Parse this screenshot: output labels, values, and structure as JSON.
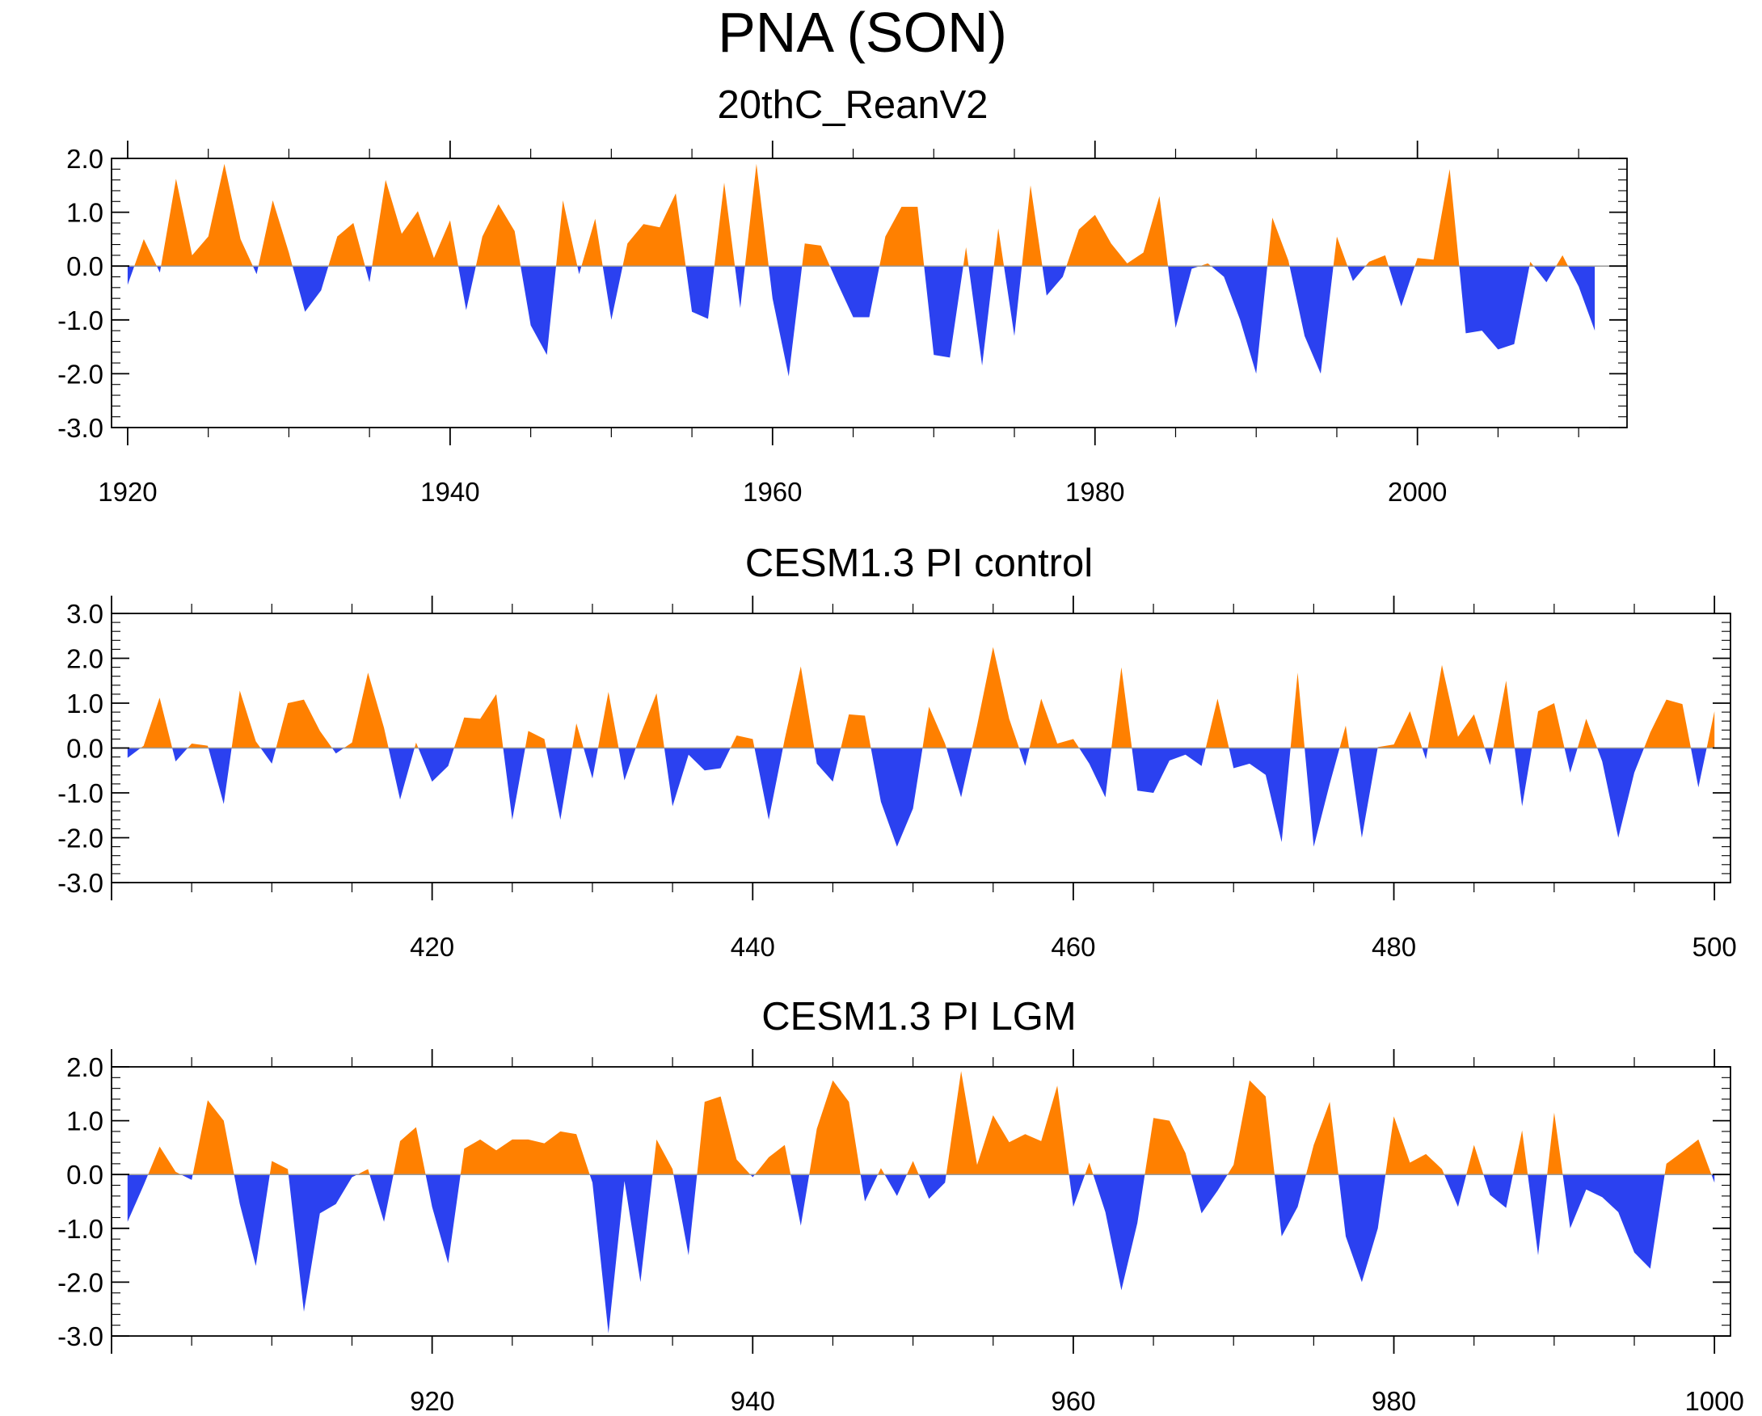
{
  "title": "PNA (SON)",
  "colors": {
    "positive": "#FF8000",
    "negative": "#2B41F0",
    "axis": "#000000"
  },
  "chart_data": [
    {
      "type": "area",
      "title": "20thC_ReanV2",
      "xlabel": "",
      "ylabel": "",
      "xlim": [
        1919,
        2013
      ],
      "ylim": [
        -3,
        2
      ],
      "yticks": [
        -3,
        -2,
        -1,
        0,
        1,
        2
      ],
      "ytick_labels": [
        "-3.0",
        "-2.0",
        "-1.0",
        "0.0",
        "1.0",
        "2.0"
      ],
      "xticks": [
        1920,
        1940,
        1960,
        1980,
        2000
      ],
      "xtick_labels": [
        "1920",
        "1940",
        "1960",
        "1980",
        "2000"
      ],
      "x_start": 1920,
      "values": [
        -0.35,
        0.5,
        -0.12,
        1.62,
        0.2,
        0.55,
        1.9,
        0.5,
        -0.15,
        1.22,
        0.25,
        -0.85,
        -0.45,
        0.55,
        0.8,
        -0.3,
        1.6,
        0.6,
        1.02,
        0.15,
        0.85,
        -0.82,
        0.55,
        1.15,
        0.65,
        -1.1,
        -1.65,
        1.22,
        -0.15,
        0.88,
        -1.0,
        0.42,
        0.78,
        0.72,
        1.35,
        -0.85,
        -0.98,
        1.55,
        -0.78,
        1.9,
        -0.6,
        -2.05,
        0.42,
        0.38,
        -0.3,
        -0.95,
        -0.95,
        0.55,
        1.1,
        1.1,
        -1.65,
        -1.7,
        0.35,
        -1.85,
        0.7,
        -1.3,
        1.5,
        -0.55,
        -0.2,
        0.68,
        0.95,
        0.42,
        0.05,
        0.25,
        1.3,
        -1.15,
        -0.05,
        0.05,
        -0.2,
        -1.0,
        -2.0,
        0.9,
        0.1,
        -1.3,
        -2.0,
        0.55,
        -0.28,
        0.08,
        0.2,
        -0.75,
        0.15,
        0.12,
        1.8,
        -1.25,
        -1.2,
        -1.55,
        -1.45,
        0.08,
        -0.3,
        0.2,
        -0.38,
        -1.2
      ]
    },
    {
      "type": "area",
      "title": "CESM1.3 PI control",
      "xlabel": "",
      "ylabel": "",
      "xlim": [
        400,
        501
      ],
      "ylim": [
        -3,
        3
      ],
      "yticks": [
        -3,
        -2,
        -1,
        0,
        1,
        2,
        3
      ],
      "ytick_labels": [
        "-3.0",
        "-2.0",
        "-1.0",
        "0.0",
        "1.0",
        "2.0",
        "3.0"
      ],
      "xticks": [
        420,
        440,
        460,
        480,
        500
      ],
      "xtick_labels": [
        "420",
        "440",
        "460",
        "480",
        "500"
      ],
      "x_start": 401,
      "values": [
        -0.22,
        0.05,
        1.12,
        -0.3,
        0.1,
        0.05,
        -1.25,
        1.28,
        0.15,
        -0.35,
        1.0,
        1.08,
        0.38,
        -0.12,
        0.12,
        1.68,
        0.45,
        -1.15,
        0.12,
        -0.75,
        -0.4,
        0.68,
        0.65,
        1.2,
        -1.6,
        0.38,
        0.2,
        -1.6,
        0.55,
        -0.68,
        1.25,
        -0.72,
        0.3,
        1.22,
        -1.3,
        -0.15,
        -0.5,
        -0.45,
        0.28,
        0.2,
        -1.6,
        0.2,
        1.82,
        -0.35,
        -0.75,
        0.75,
        0.72,
        -1.2,
        -2.2,
        -1.35,
        0.92,
        0.1,
        -1.1,
        0.5,
        2.25,
        0.65,
        -0.4,
        1.1,
        0.1,
        0.2,
        -0.35,
        -1.1,
        1.8,
        -0.95,
        -1.0,
        -0.28,
        -0.15,
        -0.4,
        1.1,
        -0.45,
        -0.35,
        -0.6,
        -2.1,
        1.68,
        -2.2,
        -0.8,
        0.5,
        -2.0,
        0.02,
        0.08,
        0.82,
        -0.25,
        1.85,
        0.25,
        0.75,
        -0.38,
        1.5,
        -1.3,
        0.82,
        1.0,
        -0.55,
        0.65,
        -0.3,
        -2.0,
        -0.55,
        0.35,
        1.08,
        0.98,
        -0.88,
        0.82
      ]
    },
    {
      "type": "area",
      "title": "CESM1.3 PI LGM",
      "xlabel": "",
      "ylabel": "",
      "xlim": [
        900,
        1001
      ],
      "ylim": [
        -3,
        2
      ],
      "yticks": [
        -3,
        -2,
        -1,
        0,
        1,
        2
      ],
      "ytick_labels": [
        "-3.0",
        "-2.0",
        "-1.0",
        "0.0",
        "1.0",
        "2.0"
      ],
      "xticks": [
        920,
        940,
        960,
        980,
        1000
      ],
      "xtick_labels": [
        "920",
        "940",
        "960",
        "980",
        "1000"
      ],
      "x_start": 901,
      "values": [
        -0.88,
        -0.2,
        0.52,
        0.05,
        -0.1,
        1.38,
        1.0,
        -0.55,
        -1.7,
        0.25,
        0.1,
        -2.55,
        -0.72,
        -0.55,
        -0.05,
        0.1,
        -0.88,
        0.62,
        0.88,
        -0.6,
        -1.65,
        0.48,
        0.65,
        0.45,
        0.65,
        0.65,
        0.58,
        0.8,
        0.75,
        -0.15,
        -2.95,
        -0.12,
        -2.0,
        0.65,
        0.1,
        -1.5,
        1.35,
        1.45,
        0.28,
        -0.05,
        0.32,
        0.55,
        -0.95,
        0.85,
        1.75,
        1.35,
        -0.5,
        0.12,
        -0.4,
        0.25,
        -0.45,
        -0.15,
        1.92,
        0.18,
        1.1,
        0.6,
        0.75,
        0.62,
        1.65,
        -0.6,
        0.22,
        -0.7,
        -2.15,
        -0.9,
        1.05,
        1.0,
        0.4,
        -0.72,
        -0.3,
        0.18,
        1.75,
        1.45,
        -1.15,
        -0.6,
        0.55,
        1.35,
        -1.15,
        -2.0,
        -1.0,
        1.08,
        0.22,
        0.38,
        0.1,
        -0.6,
        0.55,
        -0.38,
        -0.62,
        0.82,
        -1.5,
        1.15,
        -1.0,
        -0.28,
        -0.42,
        -0.7,
        -1.45,
        -1.75,
        0.2,
        0.42,
        0.65,
        -0.15
      ]
    }
  ]
}
